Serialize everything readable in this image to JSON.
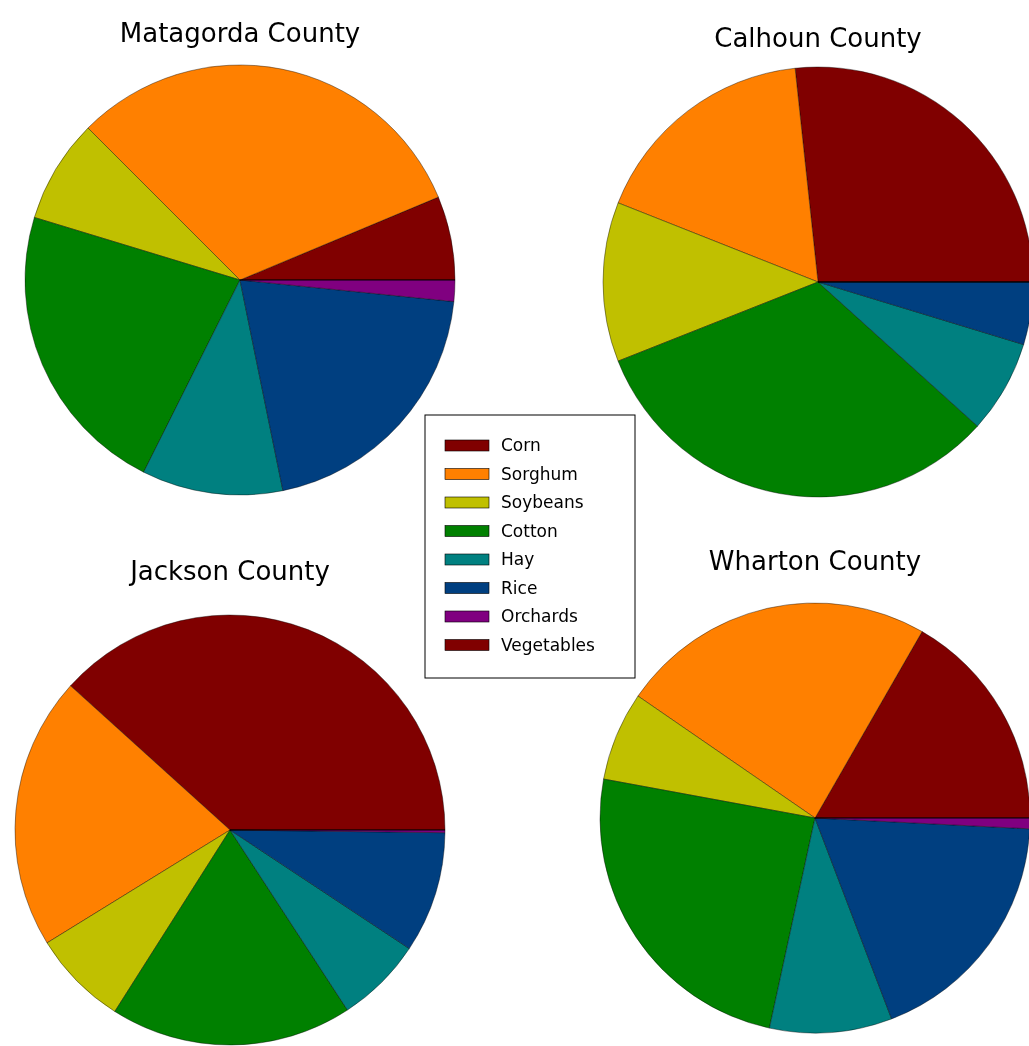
{
  "chart_data": [
    {
      "type": "pie",
      "title": "Matagorda County",
      "categories": [
        "Corn",
        "Sorghum",
        "Soybeans",
        "Cotton",
        "Hay",
        "Rice",
        "Orchards",
        "Vegetables"
      ],
      "values": [
        6.3,
        31.2,
        7.8,
        22.3,
        10.6,
        20.2,
        1.6,
        0
      ],
      "colors": [
        "#800000",
        "#ff8000",
        "#c0c000",
        "#008000",
        "#008080",
        "#003f80",
        "#800080",
        "#800000"
      ],
      "legend": "bottom right"
    },
    {
      "type": "pie",
      "title": "Calhoun County",
      "categories": [
        null,
        null,
        null,
        null,
        null,
        null,
        null,
        null
      ],
      "values": [
        26.7,
        17.3,
        12.0,
        32.3,
        7.0,
        4.7,
        0,
        0
      ],
      "colors": [
        "#800000",
        "#ff8000",
        "#c0c000",
        "#008000",
        "#008080",
        "#003f80",
        "#800080",
        "#800000"
      ]
    },
    {
      "type": "pie",
      "title": "Jackson County",
      "categories": [
        null,
        null,
        null,
        null,
        null,
        null,
        null,
        null
      ],
      "values": [
        38.3,
        20.5,
        7.2,
        18.2,
        6.5,
        9.1,
        0.2,
        0
      ],
      "colors": [
        "#800000",
        "#ff8000",
        "#c0c000",
        "#008000",
        "#008080",
        "#003f80",
        "#800080",
        "#800000"
      ]
    },
    {
      "type": "pie",
      "title": "Wharton County",
      "categories": [
        null,
        null,
        null,
        null,
        null,
        null,
        null,
        null
      ],
      "values": [
        16.7,
        23.7,
        6.7,
        24.5,
        9.2,
        18.4,
        0.8,
        0
      ],
      "colors": [
        "#800000",
        "#ff8000",
        "#c0c000",
        "#008000",
        "#008080",
        "#003f80",
        "#800080",
        "#800000"
      ]
    }
  ]
}
